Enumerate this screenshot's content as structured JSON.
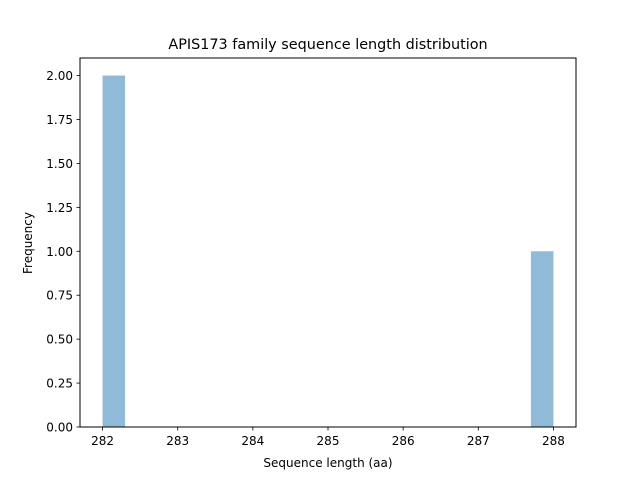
{
  "chart_data": {
    "type": "bar",
    "subtype": "histogram",
    "title": "APIS173 family sequence length distribution",
    "xlabel": "Sequence length (aa)",
    "ylabel": "Frequency",
    "bins": [
      {
        "start": 282.0,
        "end": 282.3,
        "count": 2
      },
      {
        "start": 287.7,
        "end": 288.0,
        "count": 1
      }
    ],
    "categories": [
      "282.0-282.3",
      "287.7-288.0"
    ],
    "values": [
      2,
      1
    ],
    "xlim": [
      281.7,
      288.3
    ],
    "ylim": [
      0,
      2.1
    ],
    "xticks": [
      "282",
      "283",
      "284",
      "285",
      "286",
      "287",
      "288"
    ],
    "yticks": [
      "0.00",
      "0.25",
      "0.50",
      "0.75",
      "1.00",
      "1.25",
      "1.50",
      "1.75",
      "2.00"
    ],
    "bar_color": "#8fbbd9",
    "grid": false,
    "legend": null
  }
}
